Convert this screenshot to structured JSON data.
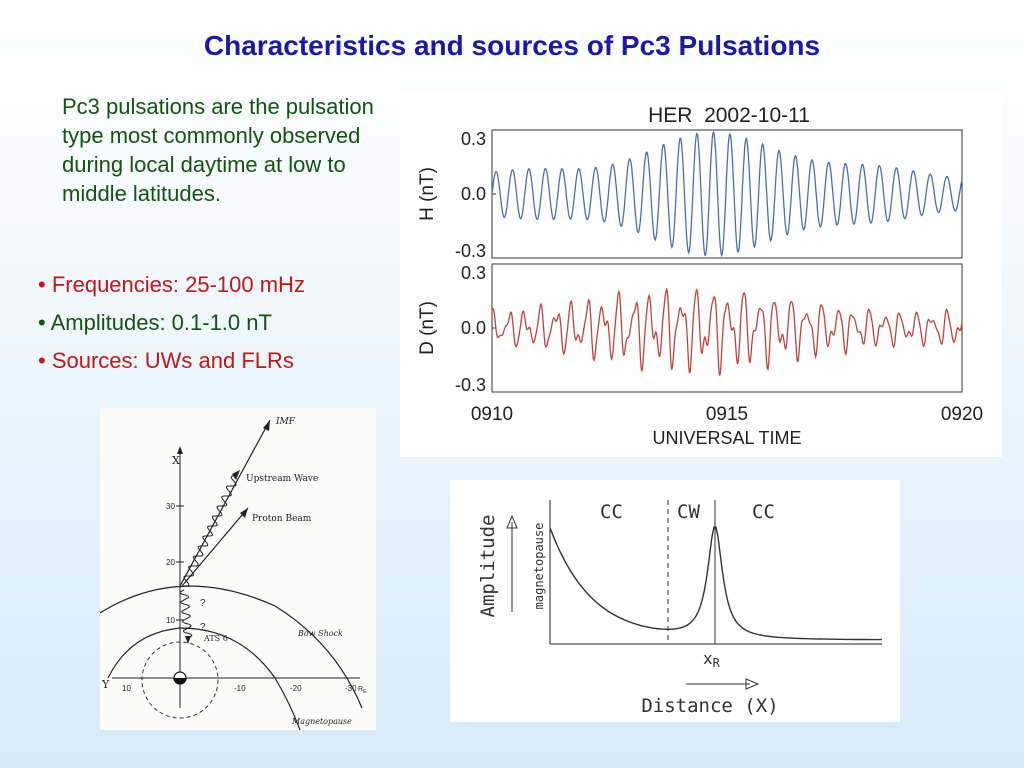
{
  "slide": {
    "title": "Characteristics and sources of Pc3 Pulsations",
    "intro": "Pc3 pulsations are the pulsation type most commonly observed during local daytime at low to middle latitudes.",
    "bullets": [
      {
        "text": "Frequencies: 25-100 mHz",
        "color": "#c01818"
      },
      {
        "text": "Amplitudes: 0.1-1.0 nT",
        "color": "#115511"
      },
      {
        "text": "Sources: UWs and FLRs",
        "color": "#c01818"
      }
    ]
  },
  "chart_data": [
    {
      "type": "line",
      "title": "HER  2002-10-11",
      "xlabel": "UNIVERSAL TIME",
      "x_ticks": [
        "0910",
        "0915",
        "0920"
      ],
      "xlim": [
        0,
        10
      ],
      "panels": [
        {
          "ylabel": "H (nT)",
          "ylim": [
            -0.3,
            0.3
          ],
          "y_ticks": [
            "0.3",
            "0.0",
            "-0.3"
          ],
          "color": "#4a6fb0"
        },
        {
          "ylabel": "D (nT)",
          "ylim": [
            -0.3,
            0.3
          ],
          "y_ticks": [
            "0.3",
            "0.0",
            "-0.3"
          ],
          "color": "#c0443c"
        }
      ]
    },
    {
      "type": "line",
      "xlabel": "Distance (X)",
      "ylabel": "Amplitude",
      "region_labels": [
        "CC",
        "CW",
        "CC"
      ],
      "vertical_label": "magnetopause",
      "marker_label": "x",
      "marker_sub": "R"
    }
  ],
  "diagram": {
    "labels": {
      "imf": "IMF",
      "upstream_wave": "Upstream Wave",
      "proton_beam": "Proton Beam",
      "bow_shock": "Bow Shock",
      "ats6": "ATS 6",
      "magnetopause": "Magnetopause",
      "x_axis": "X",
      "y_axis": "Y",
      "q1": "?",
      "q2": "?",
      "be": "R",
      "be_sub": "E"
    },
    "x_ticks": [
      "30",
      "20",
      "10"
    ],
    "y_ticks": [
      "10",
      "-10",
      "-20",
      "-30"
    ]
  }
}
